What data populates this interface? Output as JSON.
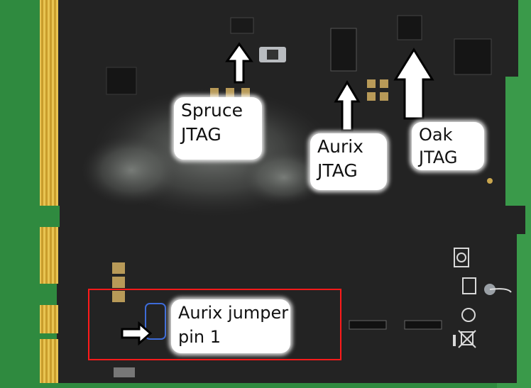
{
  "labels": {
    "spruce": [
      "Spruce",
      "JTAG"
    ],
    "aurix": [
      "Aurix",
      "JTAG"
    ],
    "oak": [
      "Oak",
      "JTAG"
    ],
    "jumper": [
      "Aurix jumper",
      "pin 1"
    ]
  },
  "colors": {
    "background": "#2f8a3f",
    "board": "#232323",
    "gold_contacts": "#d8b23a",
    "highlight": "#ff1a1a",
    "callout_fill": "#ffffff",
    "arrow_fill": "#ffffff",
    "arrow_outline": "#000000"
  }
}
